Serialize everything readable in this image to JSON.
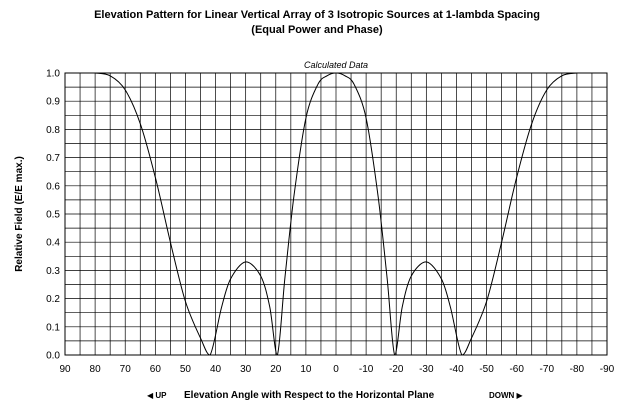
{
  "chart_data": {
    "type": "line",
    "title": "Elevation Pattern for Linear Vertical Array of 3 Isotropic Sources at 1-lambda Spacing",
    "subtitle": "(Equal Power and Phase)",
    "annotation": "Calculated Data",
    "xlabel": "Elevation Angle with Respect to the Horizontal Plane",
    "x_direction_left": "◀ UP",
    "x_direction_right": "DOWN ▶",
    "ylabel": "Relative Field (E/E max.)",
    "xlim": [
      90,
      -90
    ],
    "ylim": [
      0,
      1
    ],
    "x_ticks": [
      "90",
      "80",
      "70",
      "60",
      "50",
      "40",
      "30",
      "20",
      "10",
      "0",
      "-10",
      "-20",
      "-30",
      "-40",
      "-50",
      "-60",
      "-70",
      "-80",
      "-90"
    ],
    "y_ticks": [
      "0.0",
      "0.1",
      "0.2",
      "0.3",
      "0.4",
      "0.5",
      "0.6",
      "0.7",
      "0.8",
      "0.9",
      "1.0"
    ],
    "grid": true,
    "line_color": "#000000",
    "series": [
      {
        "x": [
          80,
          75,
          70,
          65,
          60,
          55,
          50,
          45,
          41.8,
          38,
          35,
          30,
          25,
          22,
          19.5,
          17,
          14,
          10,
          6,
          3,
          0,
          -3,
          -6,
          -10,
          -14,
          -17,
          -19.5,
          -22,
          -25,
          -30,
          -35,
          -38,
          -41.8,
          -45,
          -50,
          -55,
          -60,
          -65,
          -70,
          -75,
          -80
        ],
        "y": [
          1.0,
          0.99,
          0.94,
          0.82,
          0.63,
          0.4,
          0.19,
          0.06,
          0.0,
          0.17,
          0.27,
          0.33,
          0.28,
          0.17,
          0.0,
          0.27,
          0.56,
          0.84,
          0.96,
          0.99,
          1.0,
          0.99,
          0.96,
          0.84,
          0.56,
          0.27,
          0.0,
          0.17,
          0.28,
          0.33,
          0.27,
          0.17,
          0.0,
          0.06,
          0.19,
          0.4,
          0.63,
          0.82,
          0.94,
          0.99,
          1.0
        ]
      }
    ]
  }
}
